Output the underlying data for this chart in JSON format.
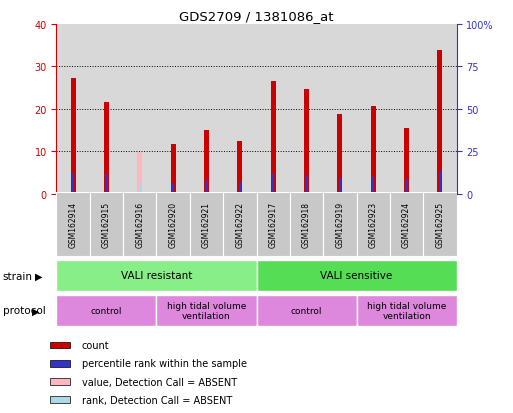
{
  "title": "GDS2709 / 1381086_at",
  "samples": [
    "GSM162914",
    "GSM162915",
    "GSM162916",
    "GSM162920",
    "GSM162921",
    "GSM162922",
    "GSM162917",
    "GSM162918",
    "GSM162919",
    "GSM162923",
    "GSM162924",
    "GSM162925"
  ],
  "count_values": [
    27.2,
    21.5,
    0.0,
    11.7,
    14.9,
    12.3,
    26.6,
    24.7,
    18.7,
    20.6,
    15.4,
    33.9
  ],
  "percentile_values": [
    12.1,
    11.3,
    0.0,
    6.5,
    8.2,
    6.8,
    11.6,
    10.8,
    9.0,
    10.0,
    8.7,
    13.5
  ],
  "absent_count": [
    0,
    0,
    9.8,
    0,
    0,
    0,
    0,
    0,
    0,
    0,
    0,
    0
  ],
  "absent_rank": [
    0,
    0,
    6.5,
    0,
    0,
    0,
    0,
    0,
    0,
    0,
    0,
    0
  ],
  "is_absent": [
    false,
    false,
    true,
    false,
    false,
    false,
    false,
    false,
    false,
    false,
    false,
    false
  ],
  "ylim_left": [
    0,
    40
  ],
  "ylim_right": [
    0,
    100
  ],
  "bar_width": 0.15,
  "count_color": "#CC0000",
  "percentile_color": "#3333CC",
  "absent_count_color": "#FFB6C1",
  "absent_rank_color": "#ADD8E6",
  "plot_bg_color": "#D8D8D8",
  "label_box_color": "#C8C8C8",
  "left_axis_color": "#CC0000",
  "right_axis_color": "#3333CC",
  "strain_resistant_color": "#88EE88",
  "strain_sensitive_color": "#55DD55",
  "protocol_color": "#DD88DD",
  "grid_yticks": [
    10,
    20,
    30
  ],
  "left_yticks": [
    0,
    10,
    20,
    30,
    40
  ],
  "right_yticks": [
    0,
    25,
    50,
    75,
    100
  ],
  "right_yticklabels": [
    "0",
    "25",
    "50",
    "75",
    "100%"
  ]
}
